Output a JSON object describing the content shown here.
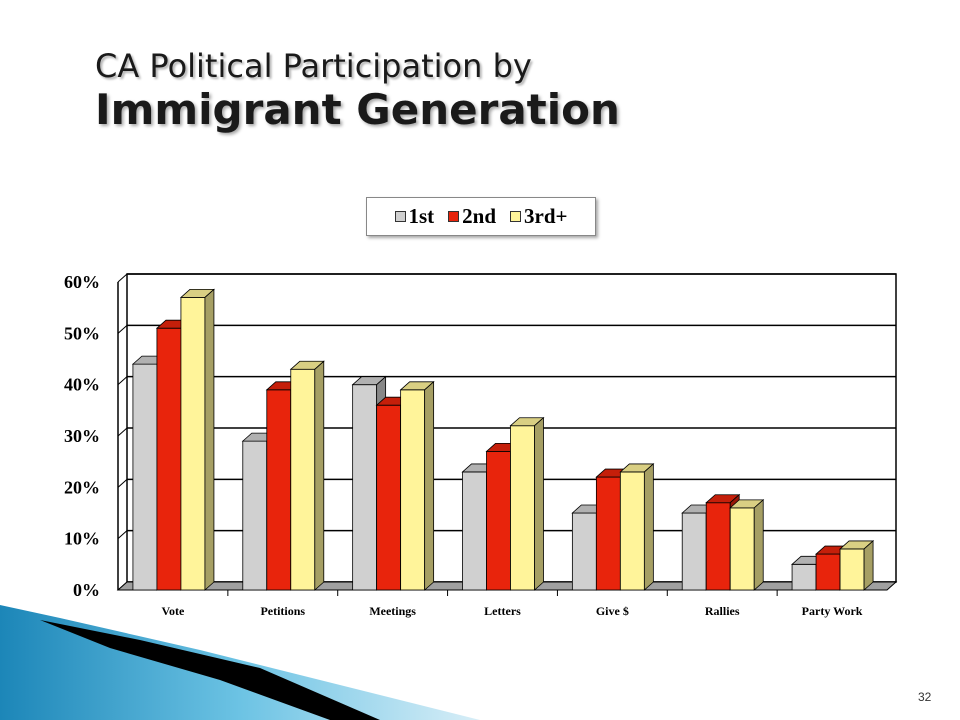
{
  "slide": {
    "title_line1": "CA Political Participation by",
    "title_line2": "Immigrant Generation",
    "page_number": "32"
  },
  "colors": {
    "1st": "#d0d0d0",
    "2nd": "#e8240c",
    "3rd+": "#fff49a"
  },
  "chart_data": {
    "type": "bar",
    "title": "",
    "xlabel": "",
    "ylabel": "",
    "categories": [
      "Vote",
      "Petitions",
      "Meetings",
      "Letters",
      "Give $",
      "Rallies",
      "Party Work"
    ],
    "series": [
      {
        "name": "1st",
        "values": [
          44,
          29,
          40,
          23,
          15,
          15,
          5
        ]
      },
      {
        "name": "2nd",
        "values": [
          51,
          39,
          36,
          27,
          22,
          17,
          7
        ]
      },
      {
        "name": "3rd+",
        "values": [
          57,
          43,
          39,
          32,
          23,
          16,
          8
        ]
      }
    ],
    "ylim": [
      0,
      60
    ],
    "yticks": [
      "0%",
      "10%",
      "20%",
      "30%",
      "40%",
      "50%",
      "60%"
    ],
    "grid": true,
    "legend_position": "top-center",
    "style": "3d"
  }
}
